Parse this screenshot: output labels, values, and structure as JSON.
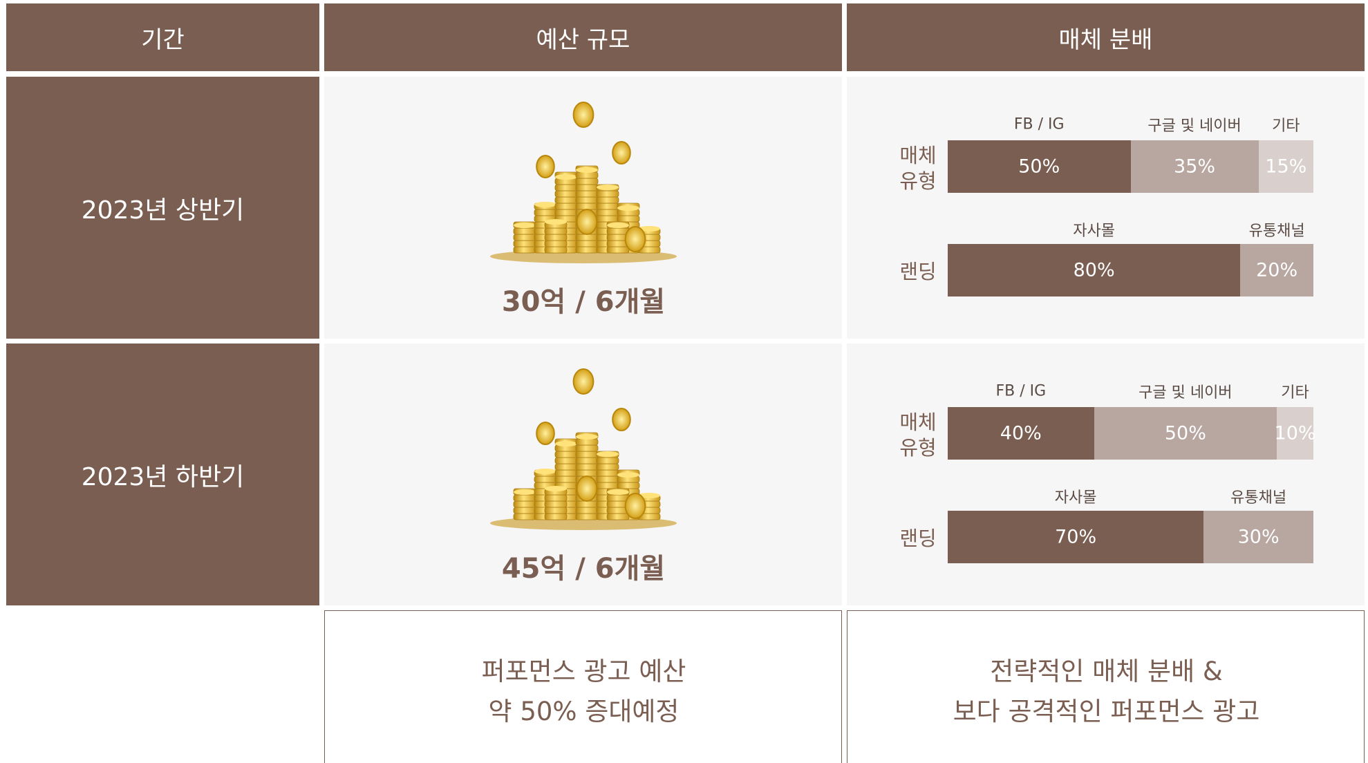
{
  "header": [
    "기간",
    "예산 규모",
    "매체 분배"
  ],
  "rows": [
    {
      "period": "2023년 상반기",
      "budget": "30억 / 6개월",
      "media_label": [
        "매체",
        "유형"
      ],
      "media": [
        {
          "name": "FB / IG",
          "value": 50,
          "label": "50%"
        },
        {
          "name": "구글 및 네이버",
          "value": 35,
          "label": "35%"
        },
        {
          "name": "기타",
          "value": 15,
          "label": "15%"
        }
      ],
      "landing_label": "랜딩",
      "landing": [
        {
          "name": "자사몰",
          "value": 80,
          "label": "80%"
        },
        {
          "name": "유통채널",
          "value": 20,
          "label": "20%"
        }
      ]
    },
    {
      "period": "2023년 하반기",
      "budget": "45억 / 6개월",
      "media_label": [
        "매체",
        "유형"
      ],
      "media": [
        {
          "name": "FB / IG",
          "value": 40,
          "label": "40%"
        },
        {
          "name": "구글 및 네이버",
          "value": 50,
          "label": "50%"
        },
        {
          "name": "기타",
          "value": 10,
          "label": "10%"
        }
      ],
      "landing_label": "랜딩",
      "landing": [
        {
          "name": "자사몰",
          "value": 70,
          "label": "70%"
        },
        {
          "name": "유통채널",
          "value": 30,
          "label": "30%"
        }
      ]
    }
  ],
  "footer": [
    [
      "퍼포먼스 광고 예산",
      "약 50% 증대예정"
    ],
    [
      "전략적인 매체 분배 &",
      "보다 공격적인 퍼포먼스 광고"
    ]
  ]
}
